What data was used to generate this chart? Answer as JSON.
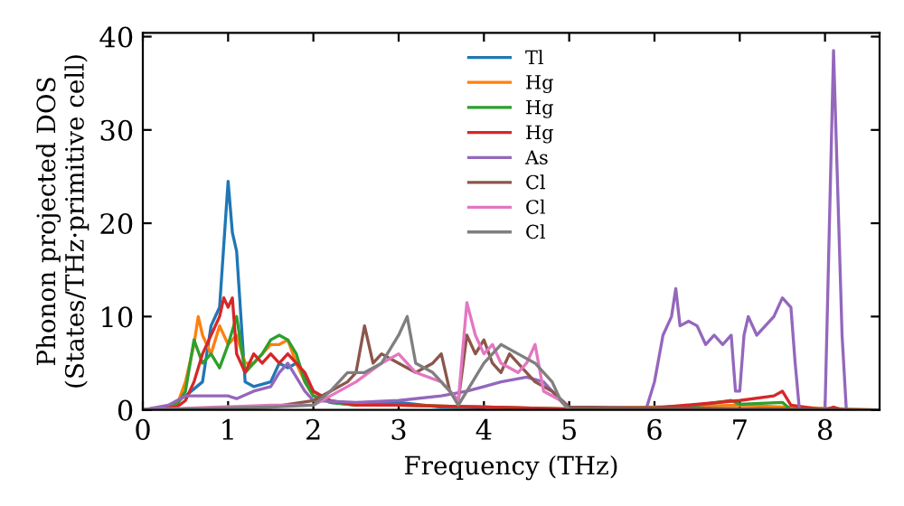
{
  "chart_data": {
    "type": "line",
    "xlabel": "Frequency (THz)",
    "ylabel": "Phonon projected DOS\n(States/THz·primitive cell)",
    "xlim": [
      0,
      8.64
    ],
    "ylim": [
      0,
      40.4
    ],
    "xticks": [
      0,
      1,
      2,
      3,
      4,
      5,
      6,
      7,
      8
    ],
    "yticks": [
      0,
      10,
      20,
      30,
      40
    ],
    "grid": false,
    "legend": "top",
    "marker": "none",
    "line_style": "solid",
    "series": [
      {
        "name": "Tl",
        "color": "#1f77b4",
        "x": [
          0,
          0.3,
          0.5,
          0.7,
          0.8,
          0.9,
          1.0,
          1.05,
          1.1,
          1.2,
          1.3,
          1.5,
          1.6,
          1.7,
          1.8,
          2.0,
          2.2,
          2.5,
          3.0,
          3.5,
          4.0
        ],
        "values": [
          0,
          0.3,
          1.5,
          3,
          9,
          11,
          24.5,
          19,
          17,
          3,
          2.5,
          3,
          5,
          4.5,
          5,
          2,
          0.8,
          0.5,
          0.8,
          0.3,
          0.2
        ]
      },
      {
        "name": "Hg",
        "color": "#ff7f0e",
        "x": [
          0,
          0.4,
          0.5,
          0.6,
          0.65,
          0.7,
          0.8,
          0.9,
          1.0,
          1.1,
          1.2,
          1.3,
          1.4,
          1.5,
          1.6,
          1.7,
          1.8,
          1.9,
          2.0,
          2.2,
          2.5,
          3.0,
          4.0,
          5.0,
          6.0,
          7.0,
          7.5,
          8.6
        ],
        "values": [
          0,
          0.5,
          3,
          7,
          10,
          8,
          6,
          9,
          7,
          8,
          5,
          5,
          6,
          7,
          7,
          7.5,
          5,
          3,
          1.5,
          1,
          0.5,
          0.5,
          0.3,
          0.1,
          0.3,
          0.5,
          0.3,
          0
        ]
      },
      {
        "name": "Hg",
        "color": "#2ca02c",
        "x": [
          0,
          0.4,
          0.5,
          0.6,
          0.7,
          0.8,
          0.9,
          1.0,
          1.1,
          1.2,
          1.3,
          1.4,
          1.5,
          1.6,
          1.7,
          1.8,
          1.9,
          2.0,
          2.2,
          2.5,
          3.0,
          4.0,
          5.0,
          6.0,
          6.5,
          6.9,
          7.0,
          7.5,
          7.6,
          8.6
        ],
        "values": [
          0,
          0.5,
          2,
          7.5,
          5,
          6,
          4.5,
          7,
          10,
          4,
          5,
          6,
          7.5,
          8,
          7.5,
          6,
          3,
          1.5,
          0.8,
          0.5,
          0.5,
          0.3,
          0.1,
          0.2,
          0.5,
          1,
          0.6,
          0.8,
          0,
          0
        ]
      },
      {
        "name": "Hg",
        "color": "#d62728",
        "x": [
          0,
          0.4,
          0.5,
          0.6,
          0.7,
          0.8,
          0.9,
          0.95,
          1.0,
          1.05,
          1.1,
          1.2,
          1.3,
          1.4,
          1.5,
          1.6,
          1.7,
          1.8,
          1.9,
          2.0,
          2.2,
          2.5,
          3.0,
          4.0,
          5.0,
          6.0,
          7.0,
          7.4,
          7.5,
          7.6,
          8.0,
          8.1,
          8.2,
          8.6
        ],
        "values": [
          0,
          0.3,
          1,
          3,
          6,
          8,
          10,
          12,
          11,
          12,
          6,
          4,
          6,
          5,
          6,
          5,
          6,
          5,
          4,
          2,
          1,
          0.5,
          0.5,
          0.3,
          0.1,
          0.2,
          1,
          1.5,
          2,
          0.5,
          0,
          0.3,
          0,
          0
        ]
      },
      {
        "name": "As",
        "color": "#9467bd",
        "x": [
          0,
          0.3,
          0.5,
          1.0,
          1.1,
          1.3,
          1.5,
          1.6,
          1.7,
          1.8,
          1.9,
          2.0,
          2.5,
          3.0,
          3.5,
          3.8,
          4.0,
          4.2,
          4.5,
          4.7,
          4.9,
          5.0,
          5.9,
          6.0,
          6.1,
          6.2,
          6.25,
          6.3,
          6.4,
          6.5,
          6.6,
          6.7,
          6.8,
          6.9,
          6.95,
          7.0,
          7.05,
          7.1,
          7.2,
          7.3,
          7.4,
          7.5,
          7.6,
          7.65,
          7.7,
          8.0,
          8.1,
          8.2,
          8.25,
          8.6
        ],
        "values": [
          0,
          0.5,
          1.5,
          1.5,
          1.2,
          2,
          2.5,
          4,
          5,
          3.5,
          2,
          1,
          0.8,
          1,
          1.5,
          2,
          2.5,
          3,
          3.5,
          3,
          1,
          0,
          0,
          3,
          8,
          10,
          13,
          9,
          9.5,
          9,
          7,
          8,
          7,
          8,
          2,
          2,
          8,
          10,
          8,
          9,
          10,
          12,
          11,
          5,
          0,
          0,
          38.5,
          8,
          0,
          0
        ]
      },
      {
        "name": "Cl",
        "color": "#8c564b",
        "x": [
          0,
          1.5,
          2.0,
          2.2,
          2.4,
          2.5,
          2.6,
          2.7,
          2.8,
          3.0,
          3.2,
          3.4,
          3.5,
          3.6,
          3.7,
          3.8,
          3.9,
          4.0,
          4.1,
          4.2,
          4.3,
          4.5,
          4.6,
          4.8,
          5.0,
          8.6
        ],
        "values": [
          0,
          0.3,
          1,
          2,
          3,
          4,
          9,
          5,
          6,
          5,
          4,
          5,
          6,
          2,
          1,
          8,
          6,
          7.5,
          5,
          4,
          6,
          4,
          3,
          2,
          0.3,
          0
        ]
      },
      {
        "name": "Cl",
        "color": "#e377c2",
        "x": [
          0,
          1.5,
          2.0,
          2.2,
          2.5,
          2.8,
          3.0,
          3.2,
          3.5,
          3.6,
          3.7,
          3.8,
          3.9,
          4.0,
          4.1,
          4.2,
          4.4,
          4.5,
          4.6,
          4.7,
          4.9,
          5.0,
          8.6
        ],
        "values": [
          0,
          0.5,
          0.5,
          1.5,
          3,
          5,
          6,
          4,
          3,
          2,
          1,
          11.5,
          8,
          6,
          7,
          5,
          4,
          5,
          7,
          2,
          1,
          0,
          0
        ]
      },
      {
        "name": "Cl",
        "color": "#7f7f7f",
        "x": [
          0,
          1.5,
          2.0,
          2.2,
          2.4,
          2.6,
          2.8,
          3.0,
          3.1,
          3.2,
          3.4,
          3.6,
          3.7,
          3.8,
          4.0,
          4.2,
          4.4,
          4.6,
          4.8,
          4.9,
          5.0,
          8.6
        ],
        "values": [
          0,
          0.3,
          0.5,
          2,
          4,
          4,
          5,
          8,
          10,
          5,
          4,
          2,
          0.5,
          2,
          5,
          7,
          6,
          5,
          3,
          1,
          0,
          0
        ]
      }
    ]
  }
}
